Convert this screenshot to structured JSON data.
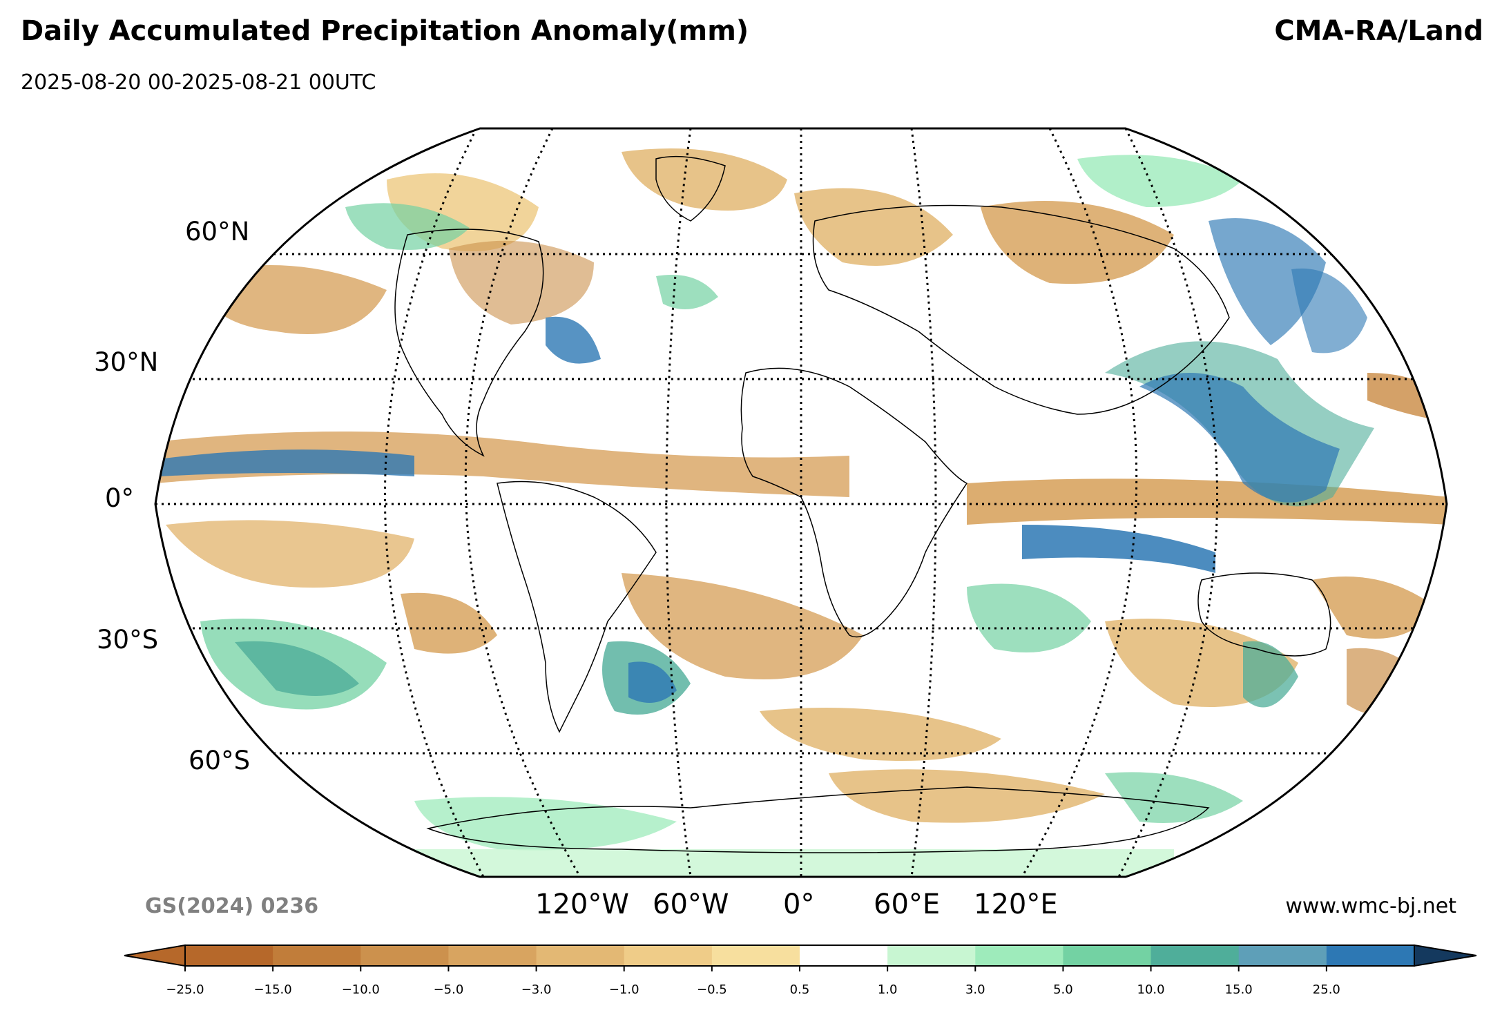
{
  "header": {
    "title": "Daily Accumulated Precipitation Anomaly(mm)",
    "subtitle": "2025-08-20 00-2025-08-21 00UTC",
    "source": "CMA-RA/Land"
  },
  "map": {
    "projection": "Robinson",
    "lat_labels": [
      "60°N",
      "30°N",
      "0°",
      "30°S",
      "60°S"
    ],
    "lon_labels": [
      "120°W",
      "60°W",
      "0°",
      "60°E",
      "120°E"
    ],
    "gridlines": "dotted",
    "legend_placement": "bottom"
  },
  "footer": {
    "watermark": "GS(2024) 0236",
    "website": "www.wmc-bj.net"
  },
  "colorbar": {
    "unit": "mm",
    "ticks": [
      "−25.0",
      "−15.0",
      "−10.0",
      "−5.0",
      "−3.0",
      "−1.0",
      "−0.5",
      "0.5",
      "1.0",
      "3.0",
      "5.0",
      "10.0",
      "15.0",
      "25.0"
    ],
    "colors": [
      "#b6682a",
      "#c17d3a",
      "#cc914d",
      "#d8a460",
      "#e3b874",
      "#efcc88",
      "#f7df9e",
      "#ffffff",
      "#c8f6d2",
      "#9eebbb",
      "#73d2a3",
      "#4fae9a",
      "#5e9fb8",
      "#2d78b4"
    ],
    "extend": "both"
  }
}
